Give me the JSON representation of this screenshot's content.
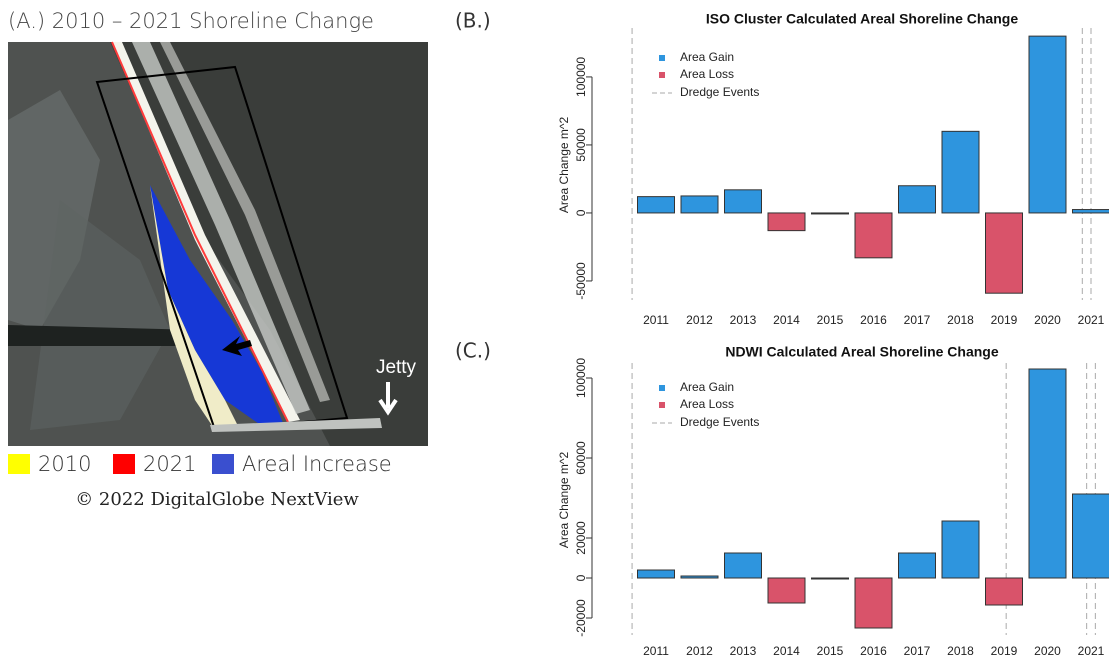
{
  "panel_a": {
    "title": "(A.) 2010 – 2021 Shoreline Change",
    "legend": [
      {
        "label": "2010",
        "color": "#ffff00"
      },
      {
        "label": "2021",
        "color": "#ff0000"
      },
      {
        "label": "Areal Increase",
        "color": "#3a4fcf"
      }
    ],
    "copyright": "© 2022 DigitalGlobe NextView",
    "jetty_label": "Jetty"
  },
  "chart_data": [
    {
      "type": "bar",
      "panel_label": "(B.)",
      "title": "ISO Cluster Calculated Areal Shoreline Change",
      "y_label": "Area Change m^2",
      "categories": [
        "2011",
        "2012",
        "2013",
        "2014",
        "2015",
        "2016",
        "2017",
        "2018",
        "2019",
        "2020",
        "2021"
      ],
      "values": [
        12000,
        12500,
        17000,
        -13000,
        0,
        -33000,
        20000,
        60000,
        -59000,
        130000,
        2500
      ],
      "gain": {
        "name": "Area Gain",
        "color": "#2e95de"
      },
      "loss": {
        "name": "Area Loss",
        "color": "#d9536a"
      },
      "dredge": {
        "name": "Dredge Events",
        "color": "#aaaaaa",
        "years": [
          2010.45,
          2020.8,
          2021.0
        ]
      },
      "ylim": [
        -64000,
        134500
      ],
      "yticks": [
        -50000,
        0,
        50000,
        100000
      ]
    },
    {
      "type": "bar",
      "panel_label": "(C.)",
      "title": "NDWI Calculated Areal Shoreline Change",
      "y_label": "Area Change m^2",
      "categories": [
        "2011",
        "2012",
        "2013",
        "2014",
        "2015",
        "2016",
        "2017",
        "2018",
        "2019",
        "2020",
        "2021"
      ],
      "values": [
        4000,
        1000,
        12500,
        -12500,
        0,
        -25000,
        12500,
        28500,
        -13500,
        104500,
        42000
      ],
      "gain": {
        "name": "Area Gain",
        "color": "#2e95de"
      },
      "loss": {
        "name": "Area Loss",
        "color": "#d9536a"
      },
      "dredge": {
        "name": "Dredge Events",
        "color": "#aaaaaa",
        "years": [
          2010.45,
          2019.05,
          2020.9,
          2021.1
        ]
      },
      "ylim": [
        -28500,
        106500
      ],
      "yticks": [
        -20000,
        0,
        20000,
        60000,
        100000
      ]
    }
  ]
}
